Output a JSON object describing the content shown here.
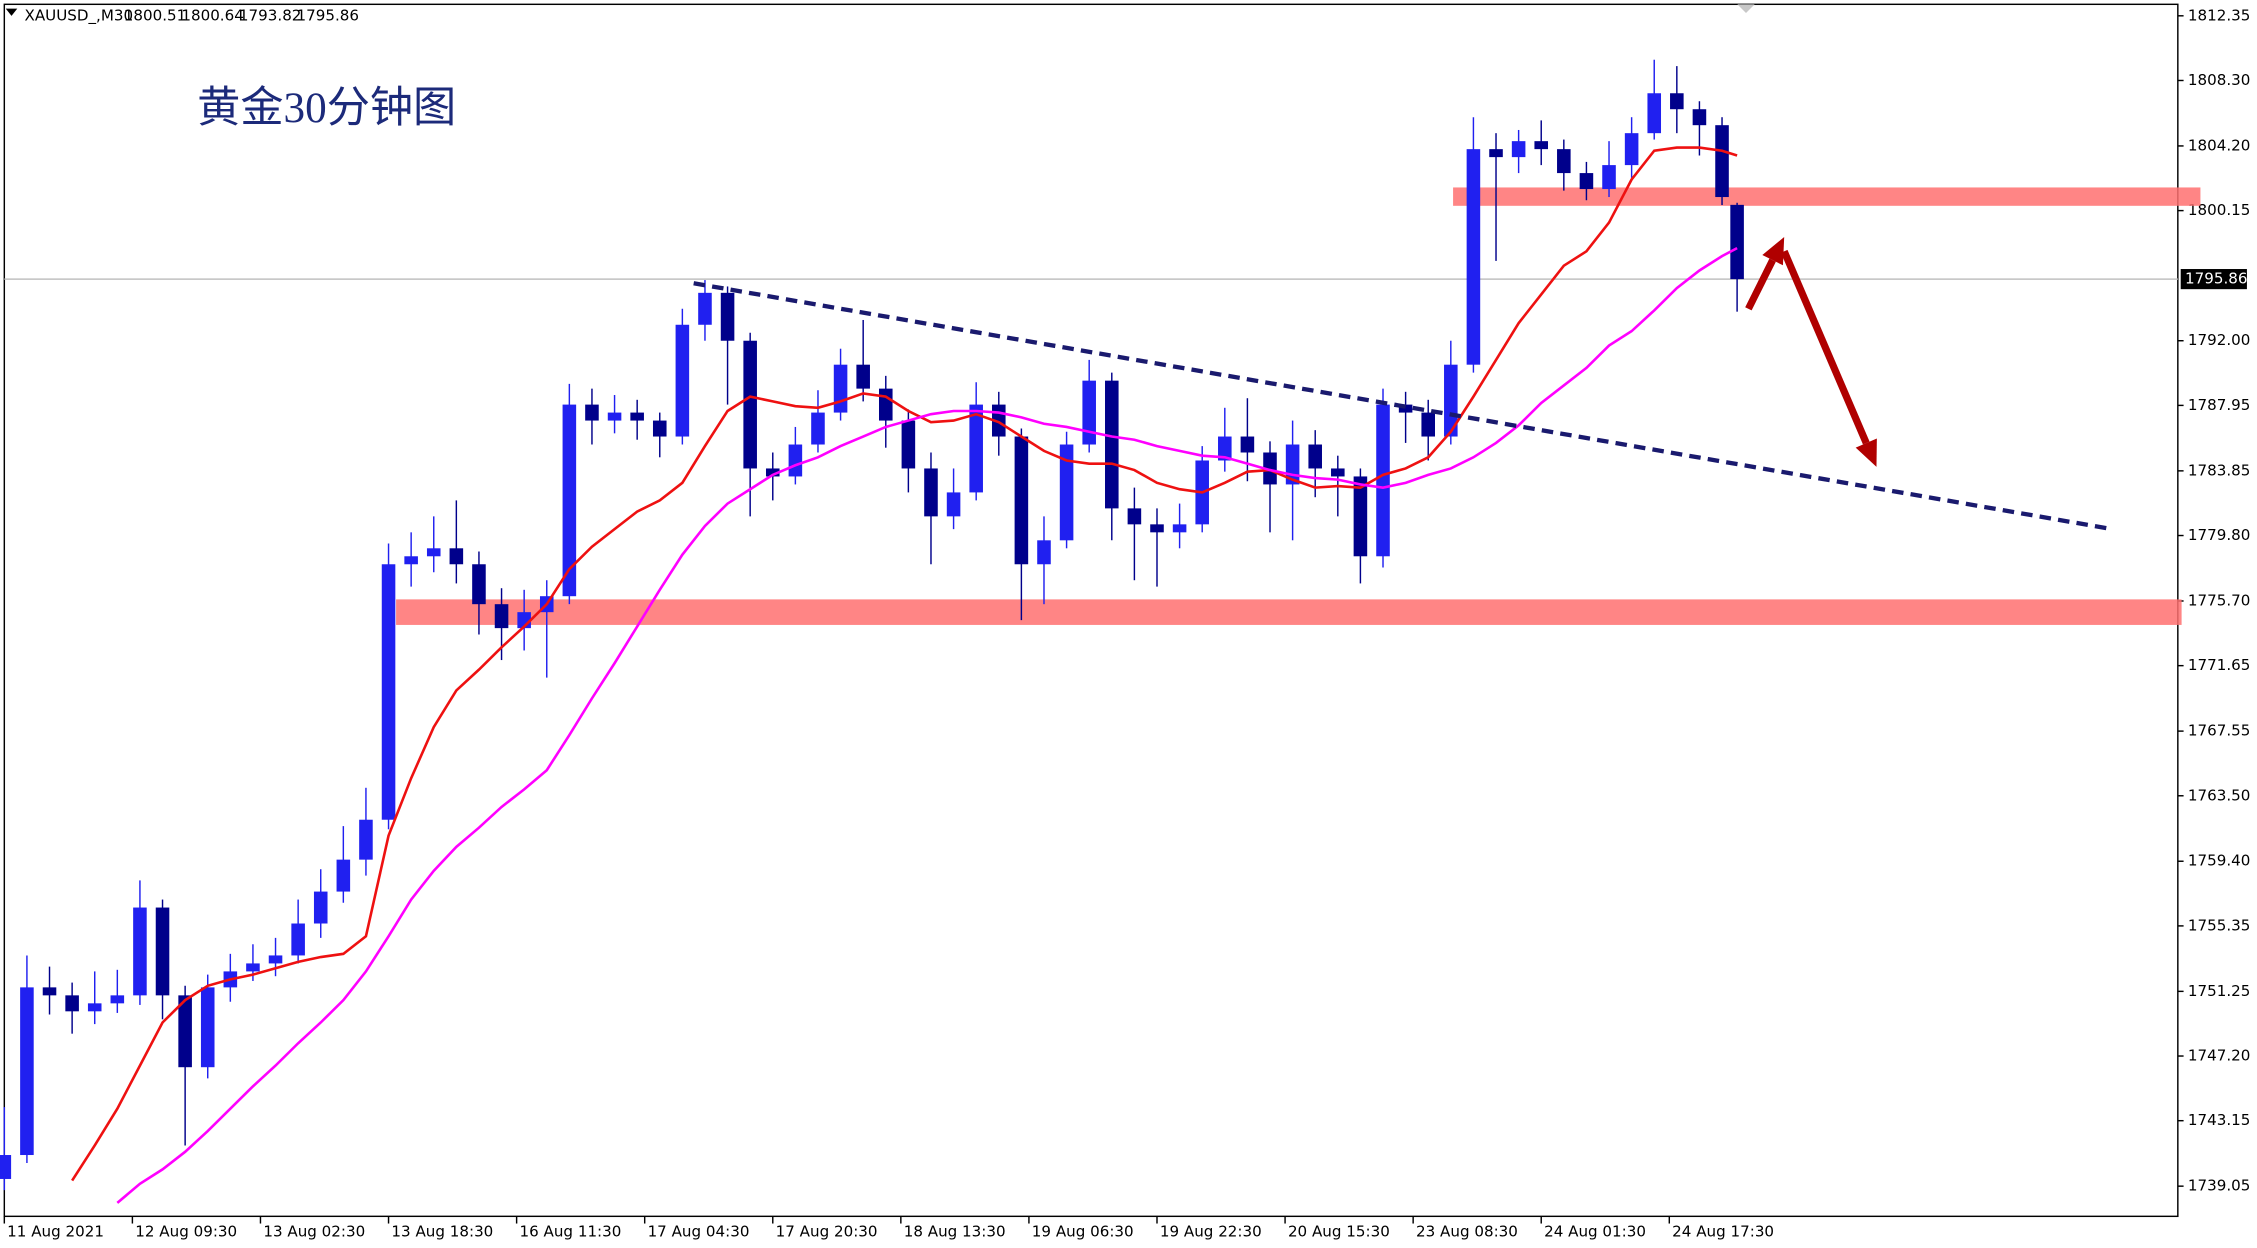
{
  "chart_data": {
    "type": "candlestick",
    "symbol": "XAUUSD_,M30",
    "title": "黄金30分钟图",
    "up_color": "#2020f0",
    "down_color": "#00008b",
    "x": [
      0,
      6,
      12,
      18,
      24,
      30,
      36,
      42,
      48,
      54,
      60,
      66,
      72,
      78,
      84,
      90,
      96,
      102,
      108,
      114,
      120,
      126,
      132,
      138,
      144,
      150,
      156,
      162,
      168,
      174,
      180,
      186,
      192,
      198,
      204,
      210,
      216,
      222,
      228,
      234,
      240,
      246,
      252,
      258,
      264,
      270,
      276,
      282,
      288,
      294,
      300,
      306,
      312,
      318,
      324,
      330,
      336,
      342,
      348,
      354,
      360,
      366,
      372,
      378,
      384,
      390,
      396,
      402,
      408,
      414,
      420,
      426,
      432,
      438,
      444,
      450,
      456,
      460
    ],
    "open": [
      1739.5,
      1741.0,
      1751.5,
      1751.0,
      1750.0,
      1750.5,
      1751.0,
      1756.5,
      1751.0,
      1746.5,
      1751.5,
      1752.5,
      1753.0,
      1753.5,
      1755.5,
      1757.5,
      1759.5,
      1762.0,
      1778.0,
      1778.5,
      1779.0,
      1778.0,
      1775.5,
      1774.0,
      1775.0,
      1776.0,
      1788.0,
      1787.0,
      1787.5,
      1787.0,
      1786.0,
      1793.0,
      1795.0,
      1792.0,
      1784.0,
      1783.5,
      1785.5,
      1787.5,
      1790.5,
      1789.0,
      1787.0,
      1784.0,
      1781.0,
      1782.5,
      1788.0,
      1786.0,
      1778.0,
      1779.5,
      1785.5,
      1789.5,
      1781.5,
      1780.5,
      1780.0,
      1780.5,
      1784.5,
      1786.0,
      1785.0,
      1783.0,
      1785.5,
      1784.0,
      1783.5,
      1778.5,
      1788.0,
      1787.5,
      1786.0,
      1790.5,
      1804.0,
      1803.5,
      1804.5,
      1804.0,
      1802.5,
      1801.5,
      1803.0,
      1805.0,
      1807.5,
      1806.5,
      1805.5,
      1800.51
    ],
    "high": [
      1744.0,
      1753.5,
      1752.8,
      1751.8,
      1752.5,
      1752.6,
      1758.2,
      1757.0,
      1751.6,
      1752.3,
      1753.6,
      1754.2,
      1754.6,
      1757.0,
      1758.9,
      1761.6,
      1764.0,
      1779.3,
      1780.0,
      1781.0,
      1782.0,
      1778.8,
      1776.5,
      1776.4,
      1777.0,
      1789.3,
      1789.0,
      1788.6,
      1788.3,
      1787.5,
      1794.0,
      1795.8,
      1795.4,
      1792.5,
      1785.0,
      1786.6,
      1788.9,
      1791.5,
      1793.3,
      1789.8,
      1787.7,
      1785.0,
      1784.0,
      1789.4,
      1788.8,
      1786.5,
      1781.0,
      1786.3,
      1790.8,
      1790.0,
      1782.8,
      1781.5,
      1781.8,
      1785.4,
      1787.8,
      1788.4,
      1785.7,
      1787.0,
      1786.4,
      1784.8,
      1784.0,
      1789.0,
      1788.8,
      1788.3,
      1792.0,
      1806.0,
      1805.0,
      1805.2,
      1805.8,
      1804.6,
      1803.2,
      1804.5,
      1806.0,
      1809.6,
      1809.2,
      1807.0,
      1806.0,
      1800.64
    ],
    "low": [
      1738.8,
      1740.5,
      1749.8,
      1748.6,
      1749.2,
      1749.9,
      1750.4,
      1749.5,
      1741.6,
      1745.8,
      1750.6,
      1751.9,
      1752.2,
      1753.0,
      1754.6,
      1756.8,
      1758.5,
      1761.4,
      1776.6,
      1777.5,
      1776.8,
      1773.6,
      1772.0,
      1772.6,
      1770.9,
      1775.5,
      1785.5,
      1786.2,
      1785.8,
      1784.7,
      1785.5,
      1792.0,
      1788.0,
      1781.0,
      1782.0,
      1783.0,
      1785.0,
      1787.0,
      1788.2,
      1785.3,
      1782.5,
      1778.0,
      1780.2,
      1782.0,
      1784.8,
      1774.5,
      1775.5,
      1779.0,
      1785.0,
      1779.5,
      1777.0,
      1776.6,
      1779.0,
      1780.0,
      1783.8,
      1783.2,
      1780.0,
      1779.5,
      1782.2,
      1781.0,
      1776.8,
      1777.8,
      1785.6,
      1784.5,
      1785.5,
      1790.0,
      1797.0,
      1802.5,
      1803.0,
      1801.4,
      1800.8,
      1801.0,
      1802.2,
      1804.6,
      1805.0,
      1803.6,
      1800.5,
      1793.82
    ],
    "close": [
      1741.0,
      1751.5,
      1751.0,
      1750.0,
      1750.5,
      1751.0,
      1756.5,
      1751.0,
      1746.5,
      1751.5,
      1752.5,
      1753.0,
      1753.5,
      1755.5,
      1757.5,
      1759.5,
      1762.0,
      1778.0,
      1778.5,
      1779.0,
      1778.0,
      1775.5,
      1774.0,
      1775.0,
      1776.0,
      1788.0,
      1787.0,
      1787.5,
      1787.0,
      1786.0,
      1793.0,
      1795.0,
      1792.0,
      1784.0,
      1783.5,
      1785.5,
      1787.5,
      1790.5,
      1789.0,
      1787.0,
      1784.0,
      1781.0,
      1782.5,
      1788.0,
      1786.0,
      1778.0,
      1779.5,
      1785.5,
      1789.5,
      1781.5,
      1780.5,
      1780.0,
      1780.5,
      1784.5,
      1786.0,
      1785.0,
      1783.0,
      1785.5,
      1784.0,
      1783.5,
      1778.5,
      1788.0,
      1787.5,
      1786.0,
      1790.5,
      1804.0,
      1803.5,
      1804.5,
      1804.0,
      1802.5,
      1801.5,
      1803.0,
      1805.0,
      1807.5,
      1806.5,
      1805.5,
      1801.0,
      1795.86
    ],
    "lines": [
      {
        "color": "#ee1111",
        "values": [
          null,
          null,
          null,
          1739.4,
          1741.6,
          1743.9,
          1746.6,
          1749.3,
          1750.7,
          1751.6,
          1752.0,
          1752.3,
          1752.7,
          1753.1,
          1753.4,
          1753.6,
          1754.7,
          1761.0,
          1764.6,
          1767.8,
          1770.1,
          1771.4,
          1772.8,
          1774.1,
          1775.5,
          1777.7,
          1779.1,
          1780.2,
          1781.3,
          1782.0,
          1783.1,
          1785.4,
          1787.6,
          1788.5,
          1788.2,
          1787.9,
          1787.8,
          1788.2,
          1788.7,
          1788.5,
          1787.6,
          1786.9,
          1787.0,
          1787.4,
          1786.9,
          1786.0,
          1785.1,
          1784.5,
          1784.3,
          1784.3,
          1783.9,
          1783.1,
          1782.7,
          1782.5,
          1783.1,
          1783.8,
          1783.9,
          1783.3,
          1782.8,
          1782.9,
          1782.8,
          1783.6,
          1784.0,
          1784.7,
          1786.3,
          1788.5,
          1790.8,
          1793.1,
          1794.9,
          1796.7,
          1797.6,
          1799.4,
          1802.1,
          1803.9,
          1804.1,
          1804.1,
          1803.9,
          1803.6
        ]
      },
      {
        "color": "#ff00ff",
        "values": [
          null,
          null,
          null,
          null,
          null,
          1738.0,
          1739.2,
          1740.1,
          1741.2,
          1742.5,
          1743.9,
          1745.3,
          1746.6,
          1748.0,
          1749.3,
          1750.7,
          1752.5,
          1754.7,
          1757.0,
          1758.8,
          1760.3,
          1761.5,
          1762.8,
          1763.9,
          1765.1,
          1767.3,
          1769.6,
          1771.8,
          1774.1,
          1776.4,
          1778.6,
          1780.4,
          1781.8,
          1782.7,
          1783.6,
          1784.2,
          1784.7,
          1785.4,
          1786.0,
          1786.6,
          1787.0,
          1787.4,
          1787.6,
          1787.6,
          1787.5,
          1787.2,
          1786.8,
          1786.6,
          1786.3,
          1786.0,
          1785.8,
          1785.4,
          1785.1,
          1784.8,
          1784.7,
          1784.3,
          1783.9,
          1783.6,
          1783.4,
          1783.3,
          1783.0,
          1782.8,
          1783.1,
          1783.6,
          1784.0,
          1784.7,
          1785.6,
          1786.7,
          1788.1,
          1789.2,
          1790.3,
          1791.7,
          1792.6,
          1793.9,
          1795.3,
          1796.4,
          1797.3,
          1797.8
        ]
      }
    ],
    "zones": [
      {
        "color": "#ff7070",
        "xlim": [
          384.6,
          583
        ],
        "ylim": [
          1800.45,
          1801.6
        ]
      },
      {
        "color": "#ff7070",
        "xlim": [
          104,
          578
        ],
        "ylim": [
          1774.2,
          1775.8
        ]
      }
    ],
    "trendline": {
      "color": "#1a1a6e",
      "x": [
        183,
        559.6
      ],
      "y": [
        1795.6,
        1780.2
      ]
    },
    "arrows": [
      {
        "color": "#b00000",
        "x": [
          463,
          472.5
        ],
        "y": [
          1794.0,
          1798.5
        ]
      },
      {
        "color": "#b00000",
        "x": [
          472.5,
          497
        ],
        "y": [
          1797.6,
          1784.1
        ]
      }
    ],
    "xlim": [
      0,
      577
    ],
    "ylim": [
      1737.16,
      1813.07
    ],
    "xticks": [
      {
        "value": 0,
        "label": "11 Aug 2021"
      },
      {
        "value": 34,
        "label": "12 Aug 09:30"
      },
      {
        "value": 68,
        "label": "13 Aug 02:30"
      },
      {
        "value": 102,
        "label": "13 Aug 18:30"
      },
      {
        "value": 136,
        "label": "16 Aug 11:30"
      },
      {
        "value": 170,
        "label": "17 Aug 04:30"
      },
      {
        "value": 204,
        "label": "17 Aug 20:30"
      },
      {
        "value": 238,
        "label": "18 Aug 13:30"
      },
      {
        "value": 272,
        "label": "19 Aug 06:30"
      },
      {
        "value": 306,
        "label": "19 Aug 22:30"
      },
      {
        "value": 340,
        "label": "20 Aug 15:30"
      },
      {
        "value": 374,
        "label": "23 Aug 08:30"
      },
      {
        "value": 408,
        "label": "24 Aug 01:30"
      },
      {
        "value": 442,
        "label": "24 Aug 17:30"
      }
    ],
    "yticks": [
      1812.35,
      {
        "value": 1808.3,
        "label": "1808.30"
      },
      {
        "value": 1804.2,
        "label": "1804.20"
      },
      1800.15,
      {
        "value": 1792.0,
        "label": "1792.00"
      },
      1787.95,
      1783.85,
      {
        "value": 1779.8,
        "label": "1779.80"
      },
      {
        "value": 1775.7,
        "label": "1775.70"
      },
      1771.65,
      1767.55,
      {
        "value": 1763.5,
        "label": "1763.50"
      },
      {
        "value": 1759.4,
        "label": "1759.40"
      },
      1755.35,
      1751.25,
      {
        "value": 1747.2,
        "label": "1747.20"
      },
      1743.15,
      1739.05
    ],
    "price_line_color": "#c0c0c0"
  }
}
